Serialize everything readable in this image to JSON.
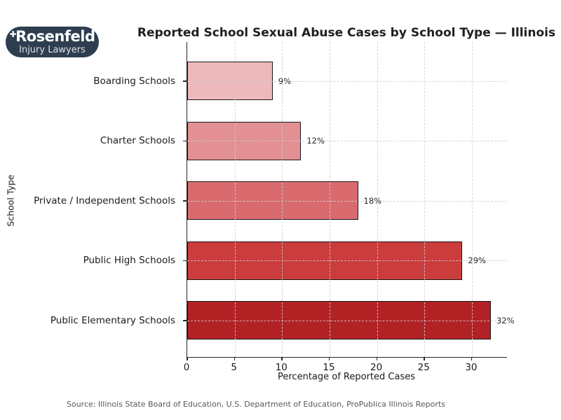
{
  "logo": {
    "brand": "Rosenfeld",
    "tagline": "Injury Lawyers",
    "plus_icon": "✚",
    "bg_color": "#2d3e50"
  },
  "chart_data": {
    "type": "bar",
    "orientation": "horizontal",
    "title": "Reported School Sexual Abuse Cases by School Type — Illinois",
    "xlabel": "Percentage of Reported Cases",
    "ylabel": "School Type",
    "categories": [
      "Boarding Schools",
      "Charter Schools",
      "Private / Independent Schools",
      "Public High Schools",
      "Public Elementary Schools"
    ],
    "values": [
      9,
      12,
      18,
      29,
      32
    ],
    "value_labels": [
      "9%",
      "12%",
      "18%",
      "29%",
      "32%"
    ],
    "bar_colors": [
      "#eeb9bc",
      "#e29093",
      "#d96b6e",
      "#cb3c3d",
      "#b22225"
    ],
    "bar_edge_color": "#1a1a1a",
    "xlim": [
      0,
      33.7
    ],
    "xticks": [
      0,
      5,
      10,
      15,
      20,
      25,
      30
    ],
    "grid": "dashed",
    "legend": "none"
  },
  "footer": {
    "source": "Source: Illinois State Board of Education, U.S. Department of Education, ProPublica Illinois Reports"
  }
}
